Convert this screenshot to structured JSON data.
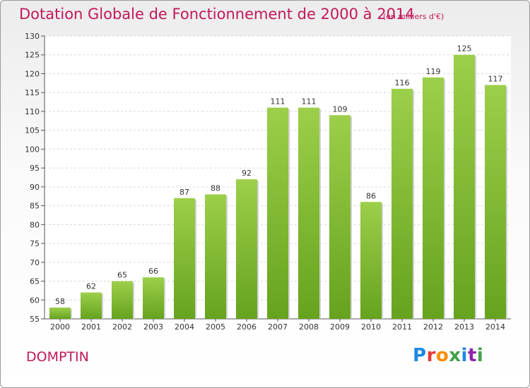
{
  "header": {
    "title": "Dotation Globale de Fonctionnement de 2000 à 2014",
    "subtitle": "(en milliers d'€)"
  },
  "footer": {
    "commune": "DOMPTIN",
    "logo": "Proxiti"
  },
  "colors": {
    "title": "#c2185b",
    "bar_top": "#9ccf4a",
    "bar_bottom": "#66a31e"
  },
  "chart_data": {
    "type": "bar",
    "title": "Dotation Globale de Fonctionnement de 2000 à 2014",
    "subtitle": "(en milliers d'€)",
    "xlabel": "",
    "ylabel": "",
    "categories": [
      "2000",
      "2001",
      "2002",
      "2003",
      "2004",
      "2005",
      "2006",
      "2007",
      "2008",
      "2009",
      "2010",
      "2011",
      "2012",
      "2013",
      "2014"
    ],
    "values": [
      58,
      62,
      65,
      66,
      87,
      88,
      92,
      111,
      111,
      109,
      86,
      116,
      119,
      125,
      117
    ],
    "ylim": [
      55,
      130
    ],
    "yticks": [
      55,
      60,
      65,
      70,
      75,
      80,
      85,
      90,
      95,
      100,
      105,
      110,
      115,
      120,
      125,
      130
    ],
    "grid": true,
    "legend": "none"
  }
}
